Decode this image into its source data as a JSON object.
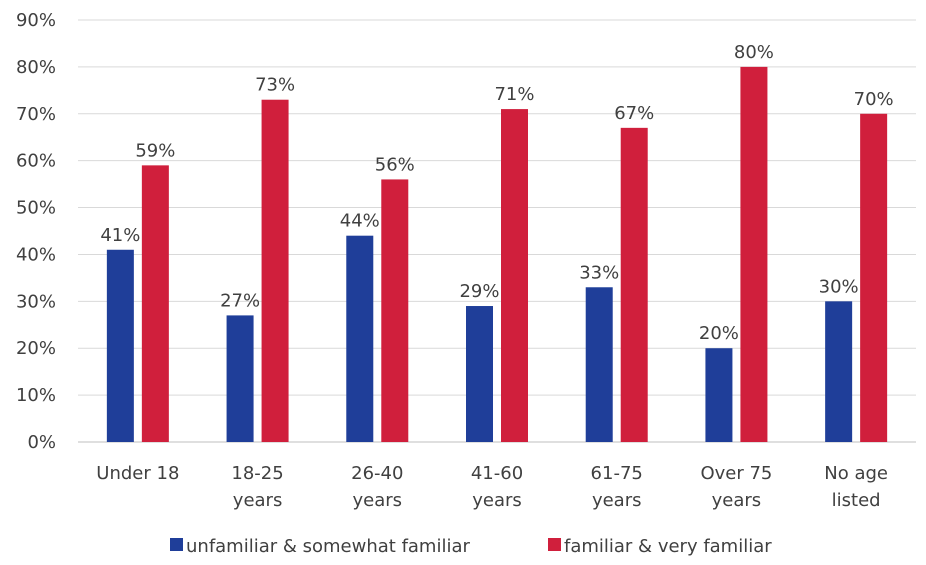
{
  "chart_data": {
    "type": "bar",
    "categories": [
      [
        "Under 18"
      ],
      [
        "18-25",
        "years"
      ],
      [
        "26-40",
        "years"
      ],
      [
        "41-60",
        "years"
      ],
      [
        "61-75",
        "years"
      ],
      [
        "Over 75",
        "years"
      ],
      [
        "No age",
        "listed"
      ]
    ],
    "series": [
      {
        "name": "unfamiliar & somewhat familiar",
        "color": "#1f3e99",
        "values": [
          41,
          27,
          44,
          29,
          33,
          20,
          30
        ],
        "labels": [
          "41%",
          "27%",
          "44%",
          "29%",
          "33%",
          "20%",
          "30%"
        ]
      },
      {
        "name": "familiar & very familiar",
        "color": "#d01f3c",
        "values": [
          59,
          73,
          56,
          71,
          67,
          80,
          70
        ],
        "labels": [
          "59%",
          "73%",
          "56%",
          "71%",
          "67%",
          "80%",
          "70%"
        ]
      }
    ],
    "ylim": [
      0,
      90
    ],
    "yticks": [
      "0%",
      "10%",
      "20%",
      "30%",
      "40%",
      "50%",
      "60%",
      "70%",
      "80%",
      "90%"
    ],
    "grid": true,
    "legend_position": "bottom",
    "title": "",
    "xlabel": "",
    "ylabel": ""
  }
}
